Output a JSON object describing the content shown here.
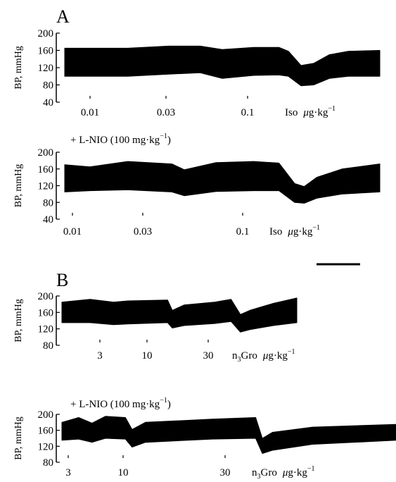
{
  "figure": {
    "panel_a_label": "A",
    "panel_b_label": "B",
    "traces": [
      {
        "id": "a1",
        "ylabel": "BP, mmHg",
        "ylim": [
          40,
          200
        ],
        "yticks": [
          "200",
          "160",
          "120",
          "80",
          "40"
        ],
        "annotation": "",
        "drug_label": "Iso",
        "unit_mu": "μ",
        "unit_text": "g·kg",
        "unit_sup": "−1",
        "doses": [
          "0.01",
          "0.03",
          "0.1"
        ],
        "bp_profile": [
          [
            0,
            100,
            165
          ],
          [
            0.2,
            100,
            165
          ],
          [
            0.33,
            105,
            170
          ],
          [
            0.43,
            108,
            170
          ],
          [
            0.5,
            95,
            162
          ],
          [
            0.6,
            102,
            167
          ],
          [
            0.68,
            103,
            167
          ],
          [
            0.71,
            100,
            158
          ],
          [
            0.75,
            78,
            125
          ],
          [
            0.79,
            80,
            130
          ],
          [
            0.84,
            95,
            150
          ],
          [
            0.9,
            100,
            158
          ],
          [
            1.0,
            100,
            160
          ]
        ]
      },
      {
        "id": "a2",
        "ylabel": "BP, mmHg",
        "ylim": [
          40,
          200
        ],
        "yticks": [
          "200",
          "160",
          "120",
          "80",
          "40"
        ],
        "annotation": "+ L-NIO (100 mg·kg",
        "annotation_sup": "−1",
        "annotation_close": ")",
        "drug_label": "Iso",
        "unit_mu": "μ",
        "unit_text": "g·kg",
        "unit_sup": "−1",
        "doses": [
          "0.01",
          "0.03",
          "0.1"
        ],
        "bp_profile": [
          [
            0,
            105,
            170
          ],
          [
            0.08,
            108,
            165
          ],
          [
            0.2,
            110,
            178
          ],
          [
            0.34,
            105,
            172
          ],
          [
            0.38,
            96,
            158
          ],
          [
            0.48,
            106,
            175
          ],
          [
            0.6,
            108,
            178
          ],
          [
            0.68,
            108,
            174
          ],
          [
            0.73,
            80,
            125
          ],
          [
            0.76,
            78,
            118
          ],
          [
            0.8,
            90,
            140
          ],
          [
            0.88,
            100,
            160
          ],
          [
            1.0,
            105,
            172
          ]
        ]
      },
      {
        "id": "b1",
        "ylabel": "BP, mmHg",
        "ylim": [
          80,
          200
        ],
        "yticks": [
          "200",
          "160",
          "120",
          "80"
        ],
        "annotation": "",
        "drug_label": "n",
        "drug_sub": "3",
        "drug_label_rest": "Gro",
        "unit_mu": "μ",
        "unit_text": "g·kg",
        "unit_sup": "−1",
        "doses": [
          "3",
          "10",
          "30"
        ],
        "bp_profile": [
          [
            0,
            135,
            185
          ],
          [
            0.12,
            135,
            192
          ],
          [
            0.22,
            130,
            185
          ],
          [
            0.28,
            132,
            188
          ],
          [
            0.45,
            135,
            190
          ],
          [
            0.47,
            122,
            165
          ],
          [
            0.52,
            128,
            178
          ],
          [
            0.65,
            133,
            185
          ],
          [
            0.72,
            138,
            192
          ],
          [
            0.76,
            112,
            155
          ],
          [
            0.8,
            118,
            165
          ],
          [
            0.9,
            128,
            182
          ],
          [
            1.0,
            135,
            195
          ]
        ]
      },
      {
        "id": "b2",
        "ylabel": "BP, mmHg",
        "ylim": [
          80,
          200
        ],
        "yticks": [
          "200",
          "160",
          "120",
          "80"
        ],
        "annotation": "+ L-NIO (100 mg·kg",
        "annotation_sup": "−1",
        "annotation_close": ")",
        "drug_label": "n",
        "drug_sub": "3",
        "drug_label_rest": "Gro",
        "unit_mu": "μ",
        "unit_text": "g·kg",
        "unit_sup": "−1",
        "doses": [
          "3",
          "10",
          "30"
        ],
        "bp_profile": [
          [
            0,
            135,
            180
          ],
          [
            0.05,
            138,
            192
          ],
          [
            0.09,
            130,
            178
          ],
          [
            0.13,
            140,
            195
          ],
          [
            0.19,
            138,
            192
          ],
          [
            0.21,
            118,
            162
          ],
          [
            0.25,
            130,
            180
          ],
          [
            0.45,
            138,
            188
          ],
          [
            0.58,
            140,
            192
          ],
          [
            0.6,
            102,
            140
          ],
          [
            0.63,
            110,
            155
          ],
          [
            0.75,
            125,
            168
          ],
          [
            1.0,
            135,
            175
          ]
        ]
      }
    ]
  }
}
